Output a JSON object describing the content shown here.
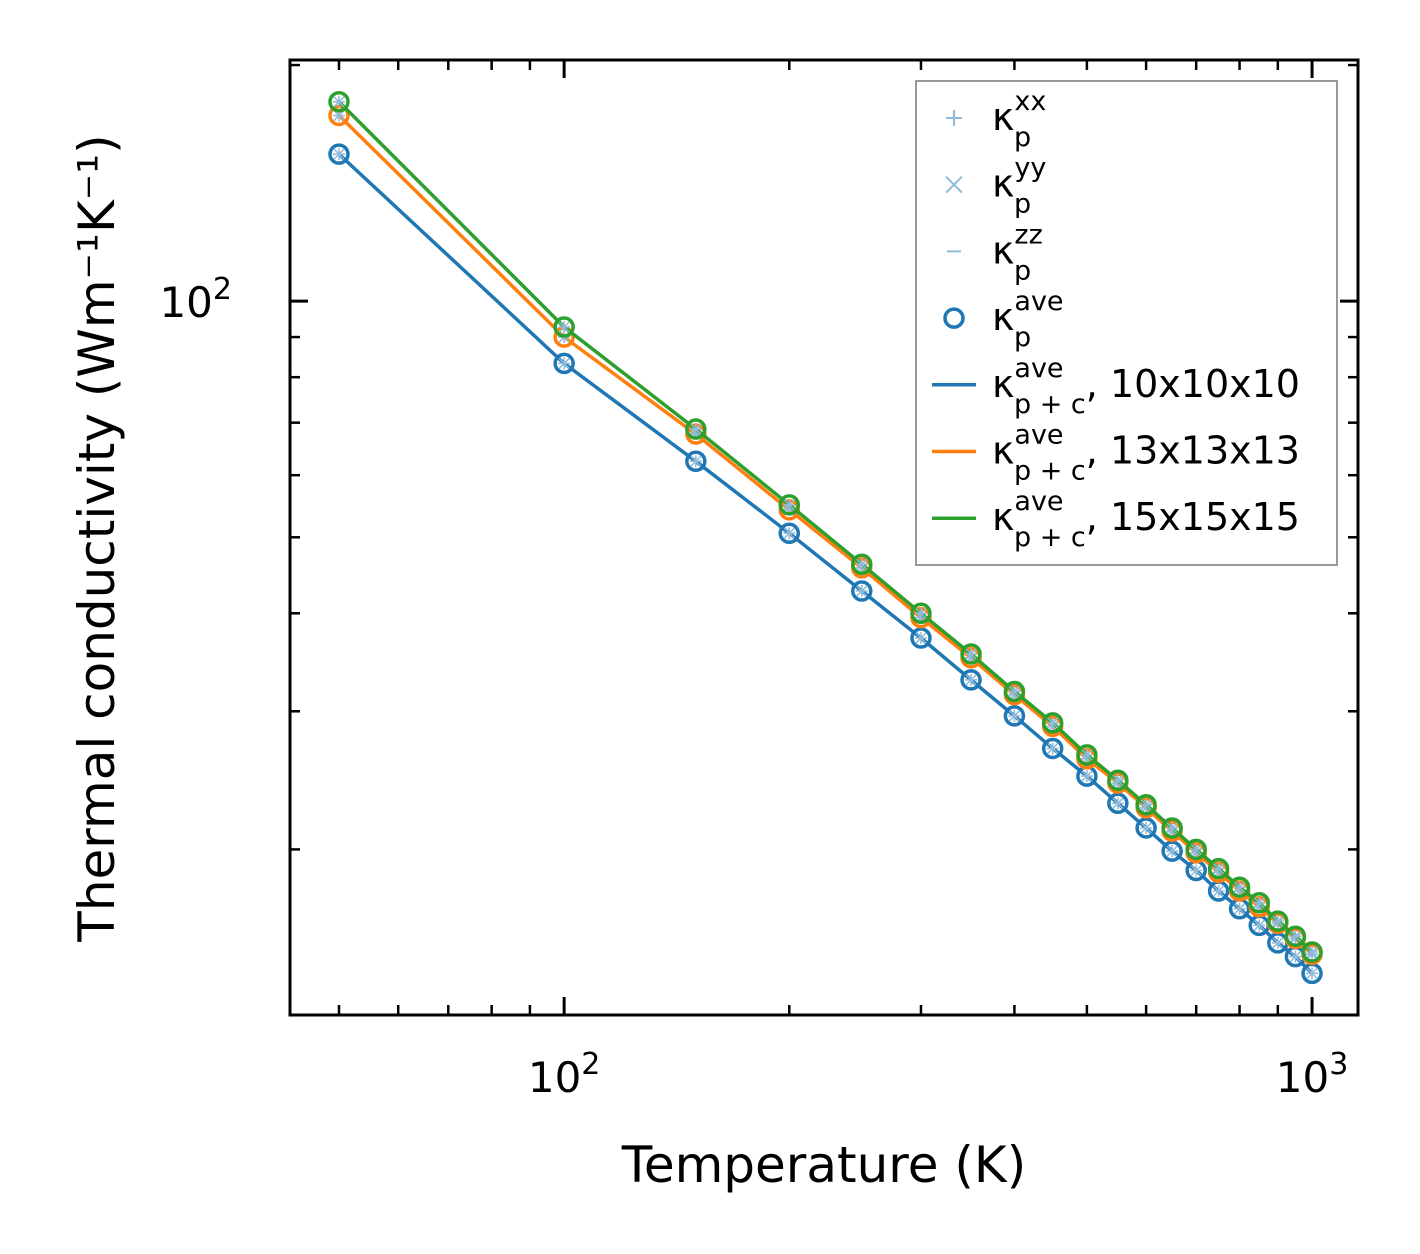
{
  "chart_data": {
    "type": "line",
    "title": "",
    "xlabel": "Temperature (K)",
    "ylabel": "Thermal conductivity (Wm⁻¹K⁻¹)",
    "xscale": "log",
    "yscale": "log",
    "xlim": [
      43,
      1152
    ],
    "ylim": [
      12.3,
      203
    ],
    "x_ticks": [
      {
        "value": 100,
        "base": "10",
        "exp": "2"
      },
      {
        "value": 1000,
        "base": "10",
        "exp": "3"
      }
    ],
    "y_ticks": [
      {
        "value": 100,
        "base": "10",
        "exp": "2"
      }
    ],
    "grid": false,
    "legend_position": "top-right",
    "x": [
      50,
      100,
      150,
      200,
      250,
      300,
      350,
      400,
      450,
      500,
      550,
      600,
      650,
      700,
      750,
      800,
      850,
      900,
      950,
      1000
    ],
    "series": [
      {
        "name": "kp_ave_10",
        "color": "#1f77b4",
        "values": [
          154,
          83.3,
          62.5,
          50.6,
          42.7,
          37.2,
          32.9,
          29.6,
          26.9,
          24.8,
          22.9,
          21.3,
          19.9,
          18.8,
          17.7,
          16.8,
          16.0,
          15.2,
          14.6,
          13.9
        ]
      },
      {
        "name": "kp_ave_13",
        "color": "#ff7f0e",
        "values": [
          172.5,
          90.0,
          67.7,
          54.2,
          45.7,
          39.5,
          35.1,
          31.5,
          28.7,
          26.1,
          24.3,
          22.6,
          21.1,
          19.8,
          18.7,
          17.7,
          16.9,
          16.1,
          15.4,
          14.7
        ]
      },
      {
        "name": "kp_ave_15",
        "color": "#2ca02c",
        "values": [
          179.6,
          92.7,
          68.7,
          55.0,
          46.2,
          40.0,
          35.5,
          31.8,
          29.0,
          26.4,
          24.5,
          22.8,
          21.3,
          20.0,
          18.9,
          17.9,
          17.1,
          16.2,
          15.5,
          14.8
        ]
      }
    ],
    "legend": [
      {
        "marker": "plus",
        "color": "#8fbbd9",
        "sym": "κ",
        "sup": "xx",
        "sub": "p",
        "suffix": ""
      },
      {
        "marker": "x",
        "color": "#8fbbd9",
        "sym": "κ",
        "sup": "yy",
        "sub": "p",
        "suffix": ""
      },
      {
        "marker": "minus",
        "color": "#8fbbd9",
        "sym": "κ",
        "sup": "zz",
        "sub": "p",
        "suffix": ""
      },
      {
        "marker": "circle",
        "color": "#1f77b4",
        "sym": "κ",
        "sup": "ave",
        "sub": "p",
        "suffix": ""
      },
      {
        "marker": "line",
        "color": "#1f77b4",
        "sym": "κ",
        "sup": "ave",
        "sub": "p + c",
        "suffix": ", 10x10x10"
      },
      {
        "marker": "line",
        "color": "#ff7f0e",
        "sym": "κ",
        "sup": "ave",
        "sub": "p + c",
        "suffix": ", 13x13x13"
      },
      {
        "marker": "line",
        "color": "#2ca02c",
        "sym": "κ",
        "sup": "ave",
        "sub": "p + c",
        "suffix": ", 15x15x15"
      }
    ]
  }
}
